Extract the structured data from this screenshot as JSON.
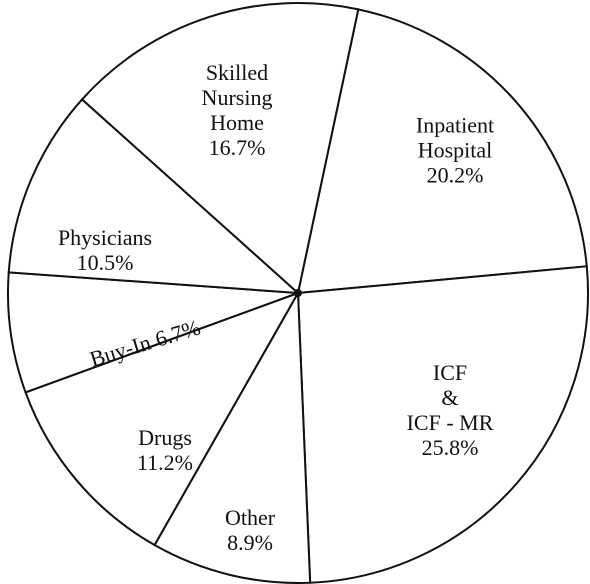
{
  "chart_data": {
    "type": "pie",
    "categories": [
      "Inpatient\nHospital",
      "ICF\n&\nICF - MR",
      "Other",
      "Drugs",
      "Buy-In",
      "Physicians",
      "Skilled\nNursing\nHome"
    ],
    "values": [
      20.2,
      25.8,
      8.9,
      11.2,
      6.7,
      10.5,
      16.7
    ],
    "value_labels": [
      "20.2%",
      "25.8%",
      "8.9%",
      "11.2%",
      "6.7%",
      "10.5%",
      "16.7%"
    ],
    "color": "#ffffff"
  }
}
